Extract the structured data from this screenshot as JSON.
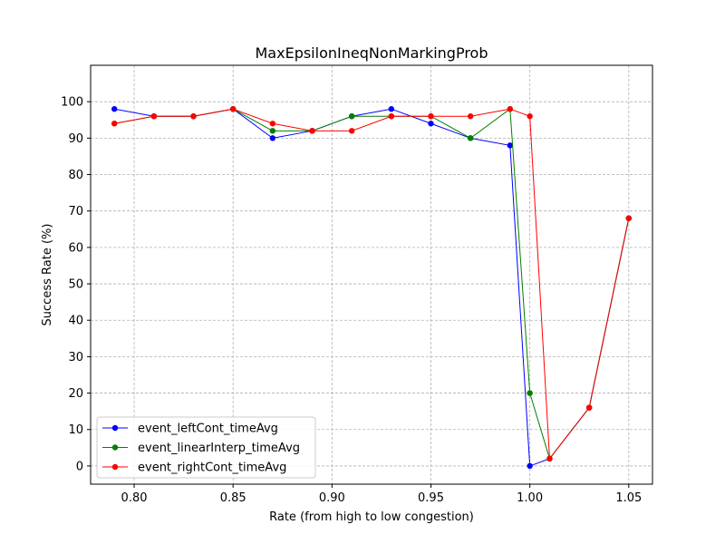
{
  "chart_data": {
    "type": "line",
    "title": "MaxEpsilonIneqNonMarkingProb",
    "xlabel": "Rate (from high to low congestion)",
    "ylabel": "Success Rate (%)",
    "xlim": [
      0.778,
      1.062
    ],
    "ylim": [
      -5,
      110
    ],
    "xticks": [
      0.8,
      0.85,
      0.9,
      0.95,
      1.0,
      1.05
    ],
    "xtick_labels": [
      "0.80",
      "0.85",
      "0.90",
      "0.95",
      "1.00",
      "1.05"
    ],
    "yticks": [
      0,
      10,
      20,
      30,
      40,
      50,
      60,
      70,
      80,
      90,
      100
    ],
    "ytick_labels": [
      "0",
      "10",
      "20",
      "30",
      "40",
      "50",
      "60",
      "70",
      "80",
      "90",
      "100"
    ],
    "grid": true,
    "legend_position": "lower-left",
    "x": [
      0.79,
      0.81,
      0.83,
      0.85,
      0.87,
      0.89,
      0.91,
      0.93,
      0.95,
      0.97,
      0.99,
      1.0,
      1.01,
      1.03,
      1.05
    ],
    "series": [
      {
        "name": "event_leftCont_timeAvg",
        "color": "#0000ff",
        "values": [
          98,
          96,
          96,
          98,
          90,
          92,
          96,
          98,
          94,
          90,
          88,
          0,
          2,
          16,
          68
        ]
      },
      {
        "name": "event_linearInterp_timeAvg",
        "color": "#008000",
        "values": [
          94,
          96,
          96,
          98,
          92,
          92,
          96,
          96,
          96,
          90,
          98,
          20,
          2,
          16,
          68
        ]
      },
      {
        "name": "event_rightCont_timeAvg",
        "color": "#ff0000",
        "values": [
          94,
          96,
          96,
          98,
          94,
          92,
          92,
          96,
          96,
          96,
          98,
          96,
          2,
          16,
          68
        ]
      }
    ]
  }
}
